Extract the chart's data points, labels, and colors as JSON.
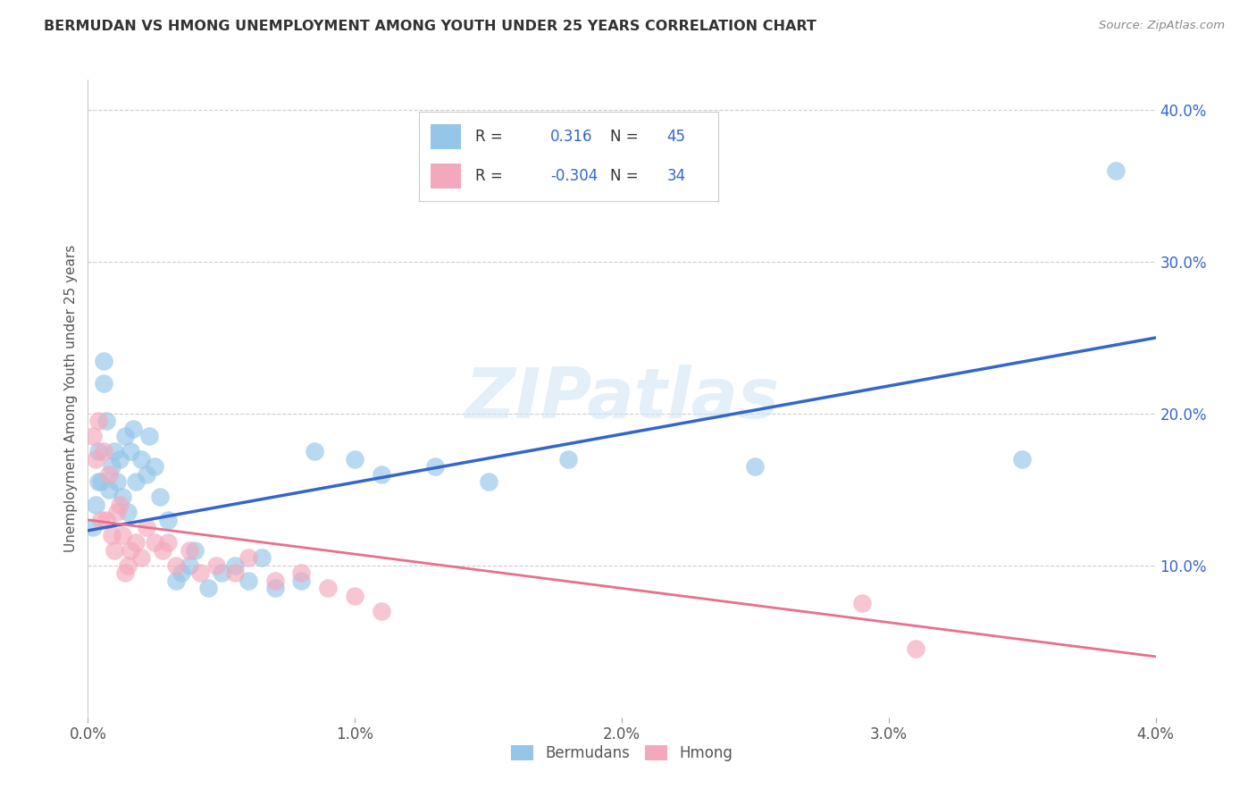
{
  "title": "BERMUDAN VS HMONG UNEMPLOYMENT AMONG YOUTH UNDER 25 YEARS CORRELATION CHART",
  "source": "Source: ZipAtlas.com",
  "ylabel": "Unemployment Among Youth under 25 years",
  "xlim": [
    0.0,
    0.04
  ],
  "ylim": [
    0.0,
    0.42
  ],
  "x_ticks": [
    0.0,
    0.01,
    0.02,
    0.03,
    0.04
  ],
  "x_tick_labels": [
    "0.0%",
    "1.0%",
    "2.0%",
    "3.0%",
    "4.0%"
  ],
  "y_ticks_right": [
    0.0,
    0.1,
    0.2,
    0.3,
    0.4
  ],
  "y_tick_labels_right": [
    "",
    "10.0%",
    "20.0%",
    "30.0%",
    "40.0%"
  ],
  "bermudans_color": "#93c6e8",
  "hmong_color": "#f4a8bb",
  "bermudans_line_color": "#3366cc",
  "hmong_line_color": "#e8708a",
  "R_bermudans": 0.316,
  "N_bermudans": 45,
  "R_hmong": -0.304,
  "N_hmong": 34,
  "legend_label_bermudans": "Bermudans",
  "legend_label_hmong": "Hmong",
  "watermark": "ZIPatlas",
  "bermudans_x": [
    0.0002,
    0.0003,
    0.0004,
    0.0004,
    0.0005,
    0.0006,
    0.0006,
    0.0007,
    0.0008,
    0.0009,
    0.001,
    0.0011,
    0.0012,
    0.0013,
    0.0014,
    0.0015,
    0.0016,
    0.0017,
    0.0018,
    0.002,
    0.0022,
    0.0023,
    0.0025,
    0.0027,
    0.003,
    0.0033,
    0.0035,
    0.0038,
    0.004,
    0.0045,
    0.005,
    0.0055,
    0.006,
    0.0065,
    0.007,
    0.008,
    0.0085,
    0.01,
    0.011,
    0.013,
    0.015,
    0.018,
    0.025,
    0.035,
    0.0385
  ],
  "bermudans_y": [
    0.125,
    0.14,
    0.155,
    0.175,
    0.155,
    0.22,
    0.235,
    0.195,
    0.15,
    0.165,
    0.175,
    0.155,
    0.17,
    0.145,
    0.185,
    0.135,
    0.175,
    0.19,
    0.155,
    0.17,
    0.16,
    0.185,
    0.165,
    0.145,
    0.13,
    0.09,
    0.095,
    0.1,
    0.11,
    0.085,
    0.095,
    0.1,
    0.09,
    0.105,
    0.085,
    0.09,
    0.175,
    0.17,
    0.16,
    0.165,
    0.155,
    0.17,
    0.165,
    0.17,
    0.36
  ],
  "hmong_x": [
    0.0002,
    0.0003,
    0.0004,
    0.0005,
    0.0006,
    0.0007,
    0.0008,
    0.0009,
    0.001,
    0.0011,
    0.0012,
    0.0013,
    0.0014,
    0.0015,
    0.0016,
    0.0018,
    0.002,
    0.0022,
    0.0025,
    0.0028,
    0.003,
    0.0033,
    0.0038,
    0.0042,
    0.0048,
    0.0055,
    0.006,
    0.007,
    0.008,
    0.009,
    0.01,
    0.011,
    0.029,
    0.031
  ],
  "hmong_y": [
    0.185,
    0.17,
    0.195,
    0.13,
    0.175,
    0.13,
    0.16,
    0.12,
    0.11,
    0.135,
    0.14,
    0.12,
    0.095,
    0.1,
    0.11,
    0.115,
    0.105,
    0.125,
    0.115,
    0.11,
    0.115,
    0.1,
    0.11,
    0.095,
    0.1,
    0.095,
    0.105,
    0.09,
    0.095,
    0.085,
    0.08,
    0.07,
    0.075,
    0.045
  ],
  "berm_line_x0": 0.0,
  "berm_line_y0": 0.123,
  "berm_line_x1": 0.04,
  "berm_line_y1": 0.25,
  "hmong_line_x0": 0.0,
  "hmong_line_y0": 0.13,
  "hmong_line_x1": 0.04,
  "hmong_line_y1": 0.04
}
